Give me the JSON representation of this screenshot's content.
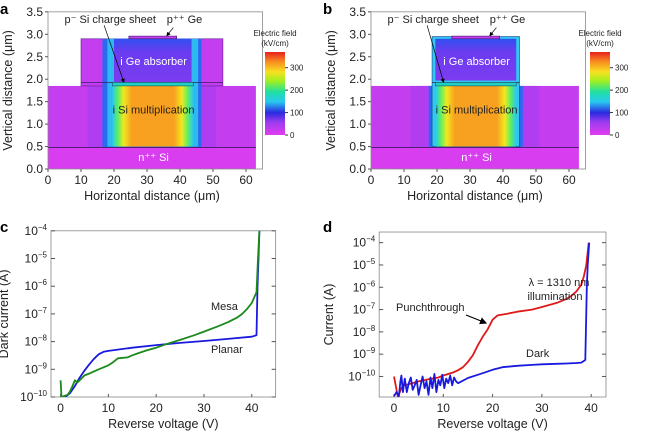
{
  "chart_data": [
    {
      "panel": "a",
      "type": "heatmap",
      "xlabel": "Horizontal distance (μm)",
      "ylabel": "Vertical distance (μm)",
      "xlim": [
        0,
        63
      ],
      "ylim": [
        0,
        3.5
      ],
      "xticks": [
        "0",
        "10",
        "20",
        "30",
        "40",
        "50",
        "60"
      ],
      "yticks": [
        "0.0",
        "0.5",
        "1.0",
        "1.5",
        "2.0",
        "2.5",
        "3.0",
        "3.5"
      ],
      "regions": [
        "p⁻ Si charge sheet",
        "p⁺⁺ Ge",
        "i Ge absorber",
        "i Si multiplication",
        "n⁺⁺ Si"
      ],
      "colorbar": {
        "title1": "Electric field",
        "title2": "(kV/cm)",
        "ticks": [
          "0",
          "100",
          "200",
          "300"
        ],
        "range": [
          0,
          370
        ]
      }
    },
    {
      "panel": "b",
      "type": "heatmap",
      "xlabel": "Horizontal distance (μm)",
      "ylabel": "Vertical distance (μm)",
      "xlim": [
        0,
        63
      ],
      "ylim": [
        0,
        3.5
      ],
      "xticks": [
        "0",
        "10",
        "20",
        "30",
        "40",
        "50",
        "60"
      ],
      "yticks": [
        "0.0",
        "0.5",
        "1.0",
        "1.5",
        "2.0",
        "2.5",
        "3.0",
        "3.5"
      ],
      "regions": [
        "p⁻ Si charge sheet",
        "p⁺⁺ Ge",
        "i Ge absorber",
        "i Si multiplication",
        "n⁺⁺ Si"
      ],
      "colorbar": {
        "title1": "Electric field",
        "title2": "(kV/cm)",
        "ticks": [
          "0",
          "100",
          "200",
          "300"
        ],
        "range": [
          0,
          370
        ]
      }
    },
    {
      "panel": "c",
      "type": "line",
      "xlabel": "Reverse voltage (V)",
      "ylabel": "Dark current (A)",
      "xlim": [
        -2,
        45
      ],
      "ylim": [
        1e-10,
        0.0001
      ],
      "yscale": "log",
      "xticks": [
        "0",
        "10",
        "20",
        "30",
        "40"
      ],
      "yticks": [
        {
          "b": "10",
          "e": "−4"
        },
        {
          "b": "10",
          "e": "−5"
        },
        {
          "b": "10",
          "e": "−6"
        },
        {
          "b": "10",
          "e": "−7"
        },
        {
          "b": "10",
          "e": "−8"
        },
        {
          "b": "10",
          "e": "−9"
        },
        {
          "b": "10",
          "e": "−10"
        }
      ],
      "series": [
        {
          "name": "Planar",
          "color": "#1a1adf",
          "x": [
            1,
            2,
            3,
            4,
            5,
            6,
            7,
            8,
            9,
            10,
            15,
            20,
            25,
            30,
            35,
            40,
            41,
            41.2,
            41.4,
            41.6
          ],
          "y": [
            1e-10,
            1.4e-10,
            2.5e-10,
            5e-10,
            9e-10,
            1.5e-09,
            2.4e-09,
            3.5e-09,
            4.3e-09,
            4.6e-09,
            6e-09,
            7.5e-09,
            9e-09,
            1.05e-08,
            1.25e-08,
            1.5e-08,
            1.7e-08,
            1e-06,
            1e-05,
            0.0001
          ]
        },
        {
          "name": "Mesa",
          "color": "#1a8a1a",
          "x": [
            0,
            0.2,
            1.5,
            2,
            2.5,
            3,
            3.5,
            4,
            5,
            6,
            8,
            10,
            11,
            12,
            14,
            15,
            16,
            18,
            20,
            22,
            25,
            28,
            30,
            33,
            35,
            37,
            38,
            39,
            40,
            41,
            41.3,
            41.6
          ],
          "y": [
            4e-10,
            1e-10,
            1.2e-10,
            1.6e-10,
            2.5e-10,
            4e-10,
            3.3e-10,
            4e-10,
            6e-10,
            7e-10,
            1e-09,
            1.4e-09,
            1.8e-09,
            2.5e-09,
            2.7e-09,
            3.2e-09,
            3.7e-09,
            4.8e-09,
            6e-09,
            8e-09,
            1.15e-08,
            1.7e-08,
            2.3e-08,
            3.6e-08,
            5e-08,
            7.5e-08,
            1e-07,
            1.5e-07,
            2.5e-07,
            6e-07,
            1e-05,
            0.0001
          ]
        }
      ],
      "annotations": [
        "Mesa",
        "Planar"
      ]
    },
    {
      "panel": "d",
      "type": "line",
      "xlabel": "Reverse voltage (V)",
      "ylabel": "Current (A)",
      "xlim": [
        -3,
        43
      ],
      "ylim": [
        1.2e-11,
        0.0003
      ],
      "yscale": "log",
      "xticks": [
        "0",
        "10",
        "20",
        "30",
        "40"
      ],
      "yticks": [
        {
          "b": "10",
          "e": "−4"
        },
        {
          "b": "10",
          "e": "−5"
        },
        {
          "b": "10",
          "e": "−6"
        },
        {
          "b": "10",
          "e": "−7"
        },
        {
          "b": "10",
          "e": "−8"
        },
        {
          "b": "10",
          "e": "−9"
        },
        {
          "b": "10",
          "e": "−10"
        }
      ],
      "series": [
        {
          "name": "λ = 1310 nm illumination",
          "color": "#e01a1a",
          "x": [
            0,
            0.8,
            1.5,
            2,
            3,
            5,
            7,
            9,
            10,
            12,
            13,
            14,
            15,
            16,
            17,
            18,
            19,
            20,
            21,
            23,
            25,
            28,
            30,
            33,
            35,
            36,
            37,
            38,
            38.5,
            39,
            39.5
          ],
          "y": [
            1e-10,
            1.2e-11,
            3e-11,
            4e-11,
            4.5e-11,
            6e-11,
            7.5e-11,
            9e-11,
            1.1e-10,
            1.5e-10,
            1.9e-10,
            2.6e-10,
            4.5e-10,
            9e-10,
            2.5e-09,
            6e-09,
            1.3e-08,
            3.5e-08,
            5.5e-08,
            6.5e-08,
            8e-08,
            1e-07,
            1.3e-07,
            2e-07,
            3e-07,
            4.2e-07,
            6.5e-07,
            1.3e-06,
            3e-06,
            1e-05,
            0.0001
          ]
        },
        {
          "name": "Dark",
          "color": "#1a1adf",
          "x": [
            0,
            0.5,
            1,
            1.3,
            1.5,
            1.8,
            2.2,
            2.6,
            3,
            3.4,
            3.8,
            4.2,
            4.6,
            5,
            5.4,
            5.8,
            6.2,
            6.6,
            7,
            7.4,
            7.8,
            8.2,
            8.6,
            9,
            9.4,
            9.8,
            10.2,
            10.6,
            11,
            11.4,
            11.8,
            12.2,
            12.6,
            13,
            15,
            18,
            20,
            22,
            25,
            28,
            30,
            33,
            35,
            37,
            38,
            38.8,
            39.1,
            39.3,
            39.6
          ],
          "y": [
            1.3e-11,
            2e-11,
            1.3e-11,
            6e-11,
            1.1e-10,
            2e-11,
            8e-11,
            2e-11,
            5e-11,
            9e-11,
            2.5e-11,
            4e-11,
            7e-11,
            1.5e-11,
            4e-11,
            1e-10,
            3e-11,
            6e-11,
            1.5e-11,
            9e-11,
            3e-11,
            1.3e-10,
            2e-11,
            7e-11,
            4e-11,
            1.2e-10,
            3e-11,
            8e-11,
            5e-11,
            1.1e-10,
            4e-11,
            9e-11,
            6e-11,
            5e-11,
            8.5e-11,
            1.4e-10,
            2e-10,
            2.6e-10,
            3e-10,
            3.3e-10,
            3.5e-10,
            3.7e-10,
            3.8e-10,
            4e-10,
            4.2e-10,
            5.5e-10,
            1e-06,
            1e-05,
            0.0001
          ]
        }
      ],
      "annotations": [
        "λ = 1310 nm",
        "illumination",
        "Punchthrough",
        "Dark"
      ]
    }
  ]
}
